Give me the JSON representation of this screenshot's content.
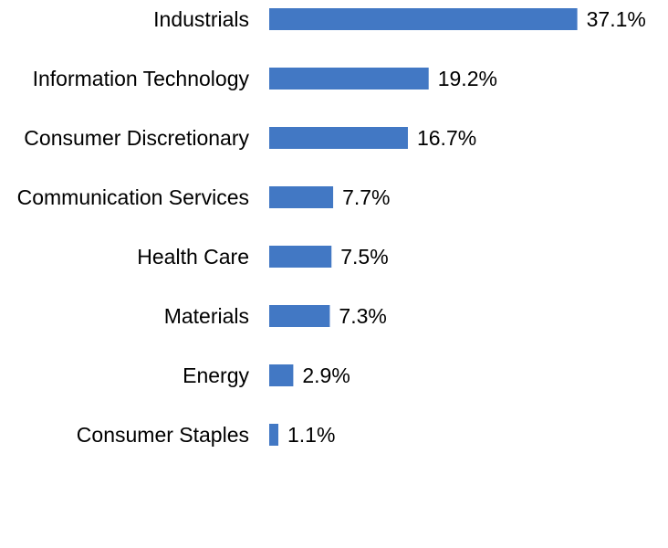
{
  "chart_data": {
    "type": "bar",
    "orientation": "horizontal",
    "categories": [
      "Industrials",
      "Information Technology",
      "Consumer Discretionary",
      "Communication Services",
      "Health Care",
      "Materials",
      "Energy",
      "Consumer Staples"
    ],
    "values": [
      37.1,
      19.2,
      16.7,
      7.7,
      7.5,
      7.3,
      2.9,
      1.1
    ],
    "value_labels": [
      "37.1%",
      "19.2%",
      "16.7%",
      "7.7%",
      "7.5%",
      "7.3%",
      "2.9%",
      "1.1%"
    ],
    "title": "",
    "xlabel": "",
    "ylabel": "",
    "xlim": [
      0,
      40
    ],
    "grid": false,
    "legend": "none",
    "bar_color": "#4278C4"
  }
}
